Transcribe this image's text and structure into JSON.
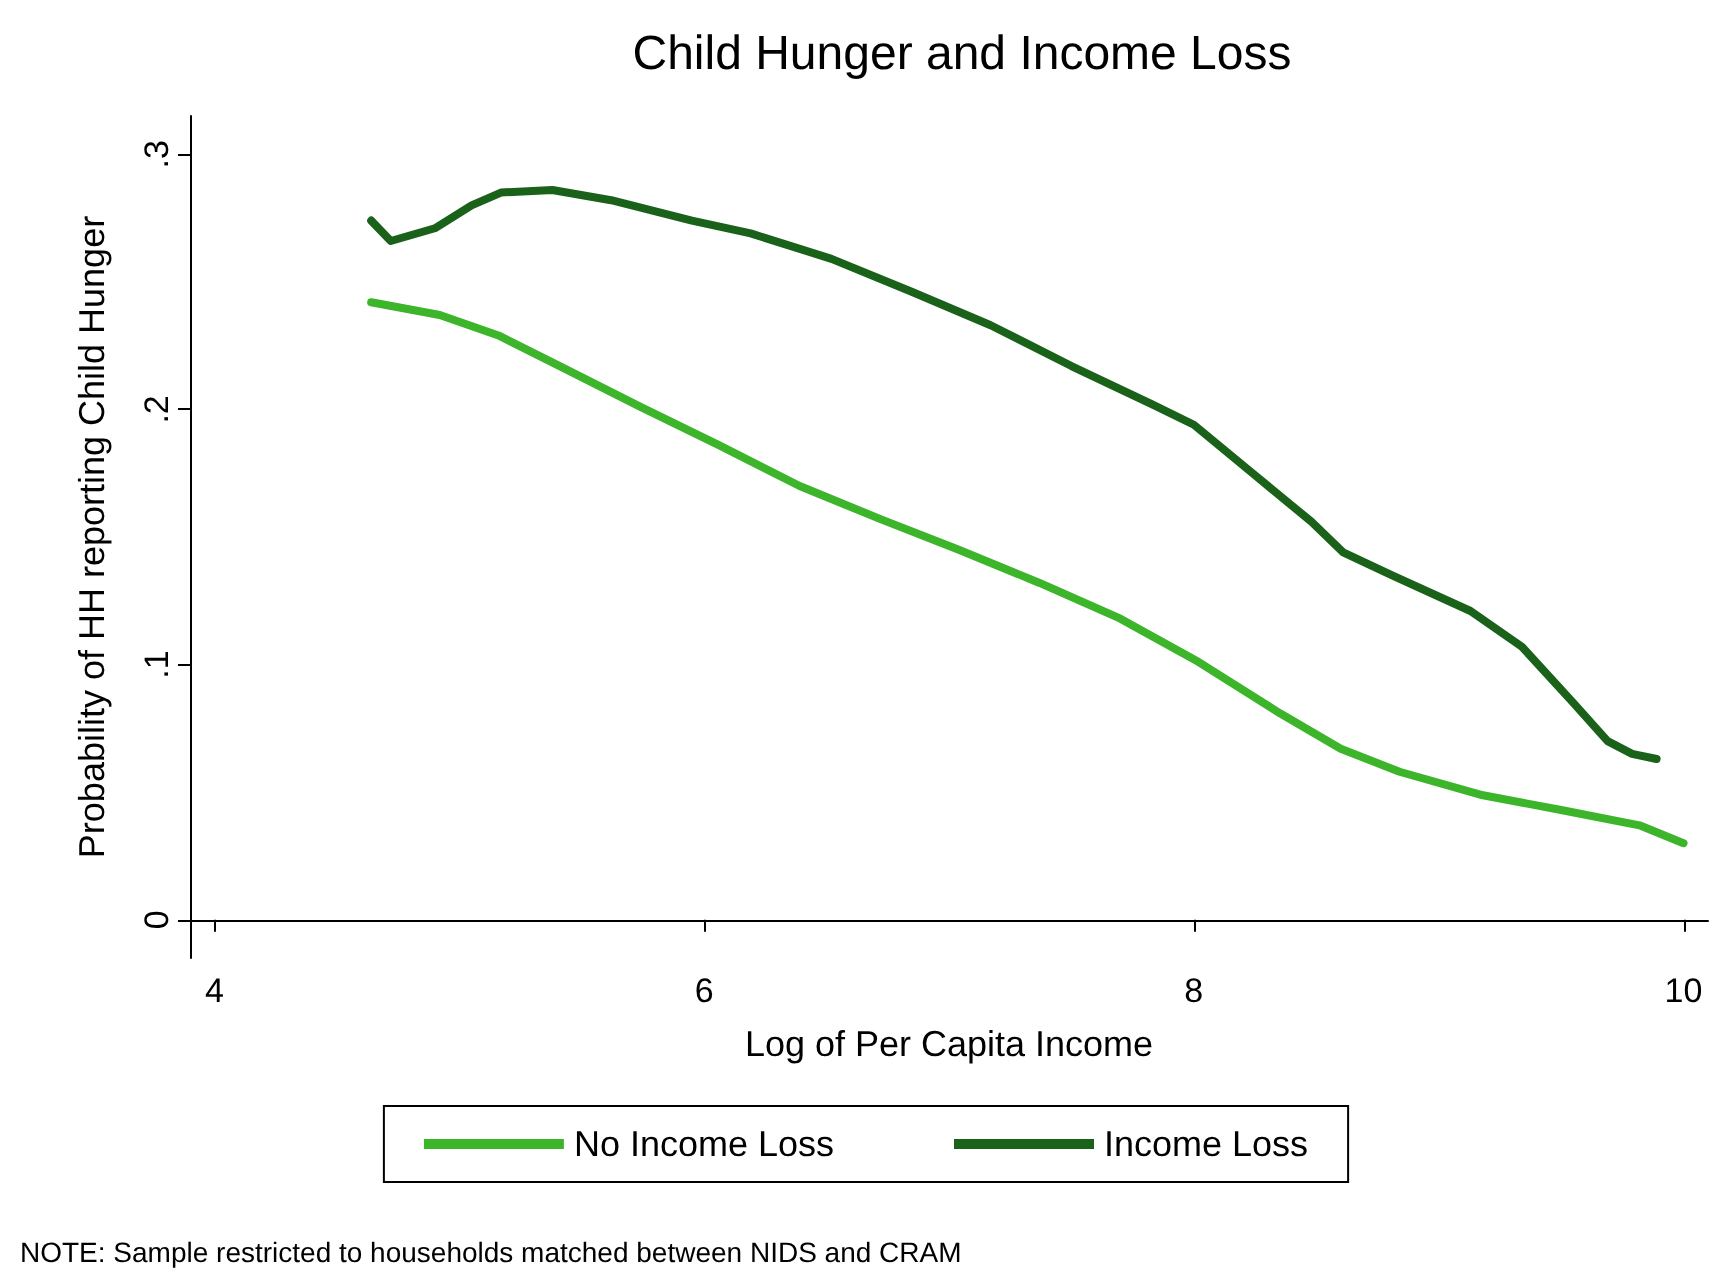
{
  "chart_data": {
    "type": "line",
    "title": "Child Hunger and Income Loss",
    "xlabel": "Log of Per Capita Income",
    "ylabel": "Probability of HH reporting Child Hunger",
    "xlim": [
      3.9,
      10.1
    ],
    "xticks": [
      4,
      6,
      8,
      10
    ],
    "ylim": [
      -0.015,
      0.315
    ],
    "yticks": [
      {
        "value": 0,
        "label": "0"
      },
      {
        "value": 0.1,
        "label": ".1"
      },
      {
        "value": 0.2,
        "label": ".2"
      },
      {
        "value": 0.3,
        "label": ".3"
      }
    ],
    "grid": false,
    "legend": "bottom",
    "marker": "none",
    "line_style": "solid",
    "annotations": [
      "NOTE: Sample restricted to households matched between NIDS and CRAM"
    ],
    "series": [
      {
        "name": "No Income Loss",
        "color": "#3cb52a",
        "x": [
          4.64,
          4.92,
          5.16,
          5.41,
          5.74,
          6.06,
          6.39,
          6.72,
          7.04,
          7.37,
          7.7,
          8.02,
          8.35,
          8.6,
          8.84,
          9.17,
          9.5,
          9.82,
          10.0
        ],
        "values": [
          0.242,
          0.237,
          0.229,
          0.217,
          0.201,
          0.186,
          0.17,
          0.157,
          0.145,
          0.132,
          0.118,
          0.101,
          0.081,
          0.067,
          0.058,
          0.049,
          0.043,
          0.037,
          0.03
        ]
      },
      {
        "name": "Income Loss",
        "color": "#1a6119",
        "x": [
          4.64,
          4.72,
          4.9,
          5.05,
          5.17,
          5.38,
          5.62,
          5.95,
          6.19,
          6.52,
          6.85,
          7.17,
          7.5,
          7.83,
          8.0,
          8.24,
          8.48,
          8.61,
          8.81,
          9.13,
          9.34,
          9.55,
          9.69,
          9.79,
          9.89
        ],
        "values": [
          0.274,
          0.266,
          0.271,
          0.28,
          0.285,
          0.286,
          0.282,
          0.274,
          0.269,
          0.259,
          0.246,
          0.233,
          0.217,
          0.202,
          0.194,
          0.175,
          0.156,
          0.144,
          0.135,
          0.121,
          0.107,
          0.085,
          0.07,
          0.065,
          0.063
        ]
      }
    ]
  }
}
